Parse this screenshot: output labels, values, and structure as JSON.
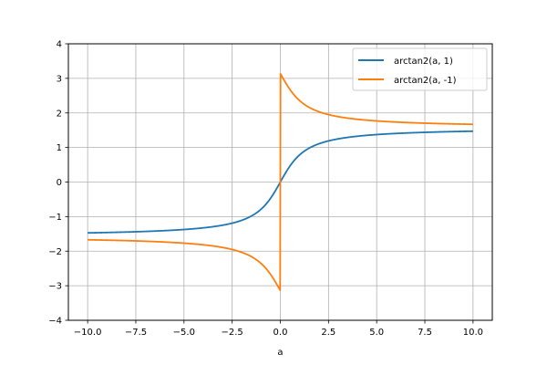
{
  "chart_data": {
    "type": "line",
    "title": "",
    "xlabel": "a",
    "ylabel": "",
    "xlim": [
      -11,
      11
    ],
    "ylim": [
      -4,
      4
    ],
    "grid": true,
    "legend_position": "upper right",
    "x_ticks": [
      "−10.0",
      "−7.5",
      "−5.0",
      "−2.5",
      "0.0",
      "2.5",
      "5.0",
      "7.5",
      "10.0"
    ],
    "x_tick_values": [
      -10,
      -7.5,
      -5,
      -2.5,
      0,
      2.5,
      5,
      7.5,
      10
    ],
    "y_ticks": [
      "−4",
      "−3",
      "−2",
      "−1",
      "0",
      "1",
      "2",
      "3",
      "4"
    ],
    "y_tick_values": [
      -4,
      -3,
      -2,
      -1,
      0,
      1,
      2,
      3,
      4
    ],
    "x_range": [
      -10,
      10
    ],
    "series": [
      {
        "name": "arctan2(a, 1)",
        "color": "#1f77b4",
        "function": "arctan2(a, 1)",
        "sample_points": {
          "x": [
            -10,
            -5,
            -2.5,
            -1,
            0,
            1,
            2.5,
            5,
            10
          ],
          "y": [
            -1.471,
            -1.373,
            -1.19,
            -0.785,
            0,
            0.785,
            1.19,
            1.373,
            1.471
          ]
        }
      },
      {
        "name": "arctan2(a, -1)",
        "color": "#ff7f0e",
        "function": "arctan2(a, -1)",
        "sample_points": {
          "x": [
            -10,
            -5,
            -2.5,
            -1,
            -0.0001,
            0,
            1,
            2.5,
            5,
            10
          ],
          "y": [
            -1.671,
            -1.768,
            -1.951,
            -2.356,
            -3.1415,
            3.1416,
            2.356,
            1.951,
            1.768,
            1.671
          ]
        }
      }
    ]
  },
  "legend": {
    "items": [
      {
        "label": "arctan2(a, 1)",
        "color": "#1f77b4"
      },
      {
        "label": "arctan2(a, -1)",
        "color": "#ff7f0e"
      }
    ]
  }
}
